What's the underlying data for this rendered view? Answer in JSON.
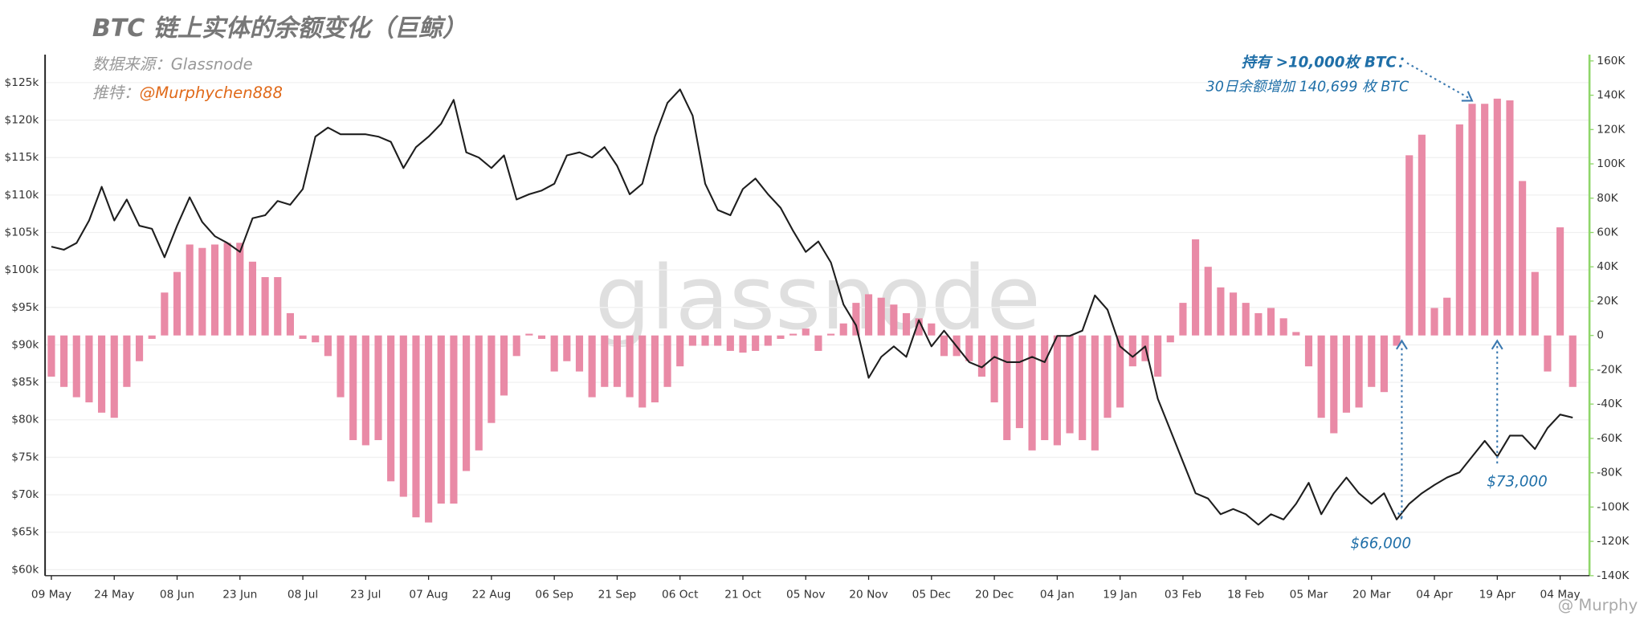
{
  "chart_data": {
    "type": "combo",
    "title": "BTC 链上实体的余额变化（巨鲸）",
    "source": "数据来源：Glassnode",
    "twitter_label": "推特：",
    "twitter_handle": "@Murphychen888",
    "annotations": [
      "持有 >10,000枚 BTC：",
      "30日余额增加 140,699 枚 BTC",
      "$66,000",
      "$73,000"
    ],
    "watermarks": [
      "glassnode",
      "@ Murphy"
    ],
    "grid": true,
    "xlim": [
      -1.5,
      367
    ],
    "xticks": [
      {
        "value": 0,
        "label": "09 May"
      },
      {
        "value": 15,
        "label": "24 May"
      },
      {
        "value": 30,
        "label": "08 Jun"
      },
      {
        "value": 45,
        "label": "23 Jun"
      },
      {
        "value": 60,
        "label": "08 Jul"
      },
      {
        "value": 75,
        "label": "23 Jul"
      },
      {
        "value": 90,
        "label": "07 Aug"
      },
      {
        "value": 105,
        "label": "22 Aug"
      },
      {
        "value": 120,
        "label": "06 Sep"
      },
      {
        "value": 135,
        "label": "21 Sep"
      },
      {
        "value": 150,
        "label": "06 Oct"
      },
      {
        "value": 165,
        "label": "21 Oct"
      },
      {
        "value": 180,
        "label": "05 Nov"
      },
      {
        "value": 195,
        "label": "20 Nov"
      },
      {
        "value": 210,
        "label": "05 Dec"
      },
      {
        "value": 225,
        "label": "20 Dec"
      },
      {
        "value": 240,
        "label": "04 Jan"
      },
      {
        "value": 255,
        "label": "19 Jan"
      },
      {
        "value": 270,
        "label": "03 Feb"
      },
      {
        "value": 285,
        "label": "18 Feb"
      },
      {
        "value": 300,
        "label": "05 Mar"
      },
      {
        "value": 315,
        "label": "20 Mar"
      },
      {
        "value": 330,
        "label": "04 Apr"
      },
      {
        "value": 345,
        "label": "19 Apr"
      },
      {
        "value": 360,
        "label": "04 May"
      }
    ],
    "ylim": [
      59200,
      127900
    ],
    "yticks": [
      {
        "value": 60000,
        "label": "$60k"
      },
      {
        "value": 65000,
        "label": "$65k"
      },
      {
        "value": 70000,
        "label": "$70k"
      },
      {
        "value": 75000,
        "label": "$75k"
      },
      {
        "value": 80000,
        "label": "$80k"
      },
      {
        "value": 85000,
        "label": "$85k"
      },
      {
        "value": 90000,
        "label": "$90k"
      },
      {
        "value": 95000,
        "label": "$95k"
      },
      {
        "value": 100000,
        "label": "$100k"
      },
      {
        "value": 105000,
        "label": "$105k"
      },
      {
        "value": 110000,
        "label": "$110k"
      },
      {
        "value": 115000,
        "label": "$115k"
      },
      {
        "value": 120000,
        "label": "$120k"
      },
      {
        "value": 125000,
        "label": "$125k"
      }
    ],
    "y2lim": [
      -140000,
      160000
    ],
    "y2ticks": [
      {
        "value": -140000,
        "label": "-140K"
      },
      {
        "value": -120000,
        "label": "-120K"
      },
      {
        "value": -100000,
        "label": "-100K"
      },
      {
        "value": -80000,
        "label": "-80K"
      },
      {
        "value": -60000,
        "label": "-60K"
      },
      {
        "value": -40000,
        "label": "-40K"
      },
      {
        "value": -20000,
        "label": "-20K"
      },
      0,
      {
        "value": 20000,
        "label": "20K"
      },
      {
        "value": 40000,
        "label": "40K"
      },
      {
        "value": 60000,
        "label": "60K"
      },
      {
        "value": 80000,
        "label": "80K"
      },
      {
        "value": 100000,
        "label": "100K"
      },
      {
        "value": 120000,
        "label": "120K"
      },
      {
        "value": 140000,
        "label": "140K"
      },
      {
        "value": 160000,
        "label": "160K"
      }
    ],
    "x": [
      0,
      3,
      6,
      9,
      12,
      15,
      18,
      21,
      24,
      27,
      30,
      33,
      36,
      39,
      42,
      45,
      48,
      51,
      54,
      57,
      60,
      63,
      66,
      69,
      72,
      75,
      78,
      81,
      84,
      87,
      90,
      93,
      96,
      99,
      102,
      105,
      108,
      111,
      114,
      117,
      120,
      123,
      126,
      129,
      132,
      135,
      138,
      141,
      144,
      147,
      150,
      153,
      156,
      159,
      162,
      165,
      168,
      171,
      174,
      177,
      180,
      183,
      186,
      189,
      192,
      195,
      198,
      201,
      204,
      207,
      210,
      213,
      216,
      219,
      222,
      225,
      228,
      231,
      234,
      237,
      240,
      243,
      246,
      249,
      252,
      255,
      258,
      261,
      264,
      267,
      270,
      273,
      276,
      279,
      282,
      285,
      288,
      291,
      294,
      297,
      300,
      303,
      306,
      309,
      312,
      315,
      318,
      321,
      324,
      327,
      330,
      333,
      336,
      339,
      342,
      345,
      348,
      351,
      354,
      357,
      360,
      363
    ],
    "series": [
      {
        "type": "bar",
        "axis": "y2",
        "color": "#e98aa6",
        "values": [
          -24000,
          -30000,
          -36000,
          -39000,
          -45000,
          -48000,
          -30000,
          -15000,
          -2000,
          25000,
          37000,
          53000,
          51000,
          53000,
          54000,
          54000,
          43000,
          34000,
          34000,
          13000,
          -2000,
          -4000,
          -12000,
          -36000,
          -61000,
          -64000,
          -61000,
          -85000,
          -94000,
          -106000,
          -109000,
          -98000,
          -98000,
          -79000,
          -67000,
          -51000,
          -35000,
          -12000,
          1000,
          -2000,
          -21000,
          -15000,
          -21000,
          -36000,
          -30000,
          -30000,
          -36000,
          -42000,
          -39000,
          -30000,
          -18000,
          -6000,
          -6000,
          -6000,
          -9000,
          -10000,
          -9000,
          -6000,
          -2000,
          1000,
          4000,
          -9000,
          1000,
          7000,
          19000,
          24000,
          22000,
          18000,
          13000,
          10000,
          7000,
          -12000,
          -12000,
          -15000,
          -24000,
          -39000,
          -61000,
          -54000,
          -67000,
          -61000,
          -64000,
          -57000,
          -61000,
          -67000,
          -48000,
          -42000,
          -18000,
          -15000,
          -24000,
          -4000,
          19000,
          56000,
          40000,
          28000,
          25000,
          19000,
          13000,
          16000,
          10000,
          2000,
          -18000,
          -48000,
          -57000,
          -45000,
          -42000,
          -30000,
          -33000,
          -6000,
          105000,
          117000,
          16000,
          22000,
          123000,
          135000,
          135000,
          138000,
          137000,
          90000,
          37000,
          -21000,
          63000,
          -30000
        ]
      },
      {
        "type": "line",
        "color": "#1e1e1e",
        "values": [
          103100,
          102700,
          103600,
          106600,
          111100,
          106600,
          109400,
          105900,
          105500,
          101700,
          105900,
          109700,
          106400,
          104500,
          103600,
          102400,
          106900,
          107300,
          109200,
          108700,
          110800,
          117800,
          119000,
          118100,
          118100,
          118100,
          117800,
          117100,
          113600,
          116400,
          117800,
          119500,
          122700,
          115700,
          115000,
          113600,
          115300,
          109400,
          110100,
          110600,
          111500,
          115300,
          115700,
          115000,
          116400,
          113900,
          110100,
          111500,
          117800,
          122300,
          124100,
          120600,
          111500,
          108000,
          107300,
          110800,
          112200,
          110100,
          108300,
          105200,
          102400,
          103800,
          101000,
          95400,
          92600,
          85600,
          88400,
          89800,
          88400,
          93300,
          89800,
          91900,
          89800,
          87700,
          87000,
          88400,
          87700,
          87700,
          88400,
          87700,
          91200,
          91200,
          91900,
          96600,
          94700,
          89800,
          88400,
          89800,
          82800,
          78600,
          74400,
          70200,
          69500,
          67400,
          68100,
          67400,
          66000,
          67400,
          66700,
          68800,
          71600,
          67400,
          70200,
          72300,
          70200,
          68800,
          70200,
          66700,
          68800,
          70200,
          71300,
          72300,
          73000,
          75100,
          77200,
          75100,
          77900,
          77900,
          76100,
          78900,
          80700,
          80300
        ]
      }
    ]
  }
}
